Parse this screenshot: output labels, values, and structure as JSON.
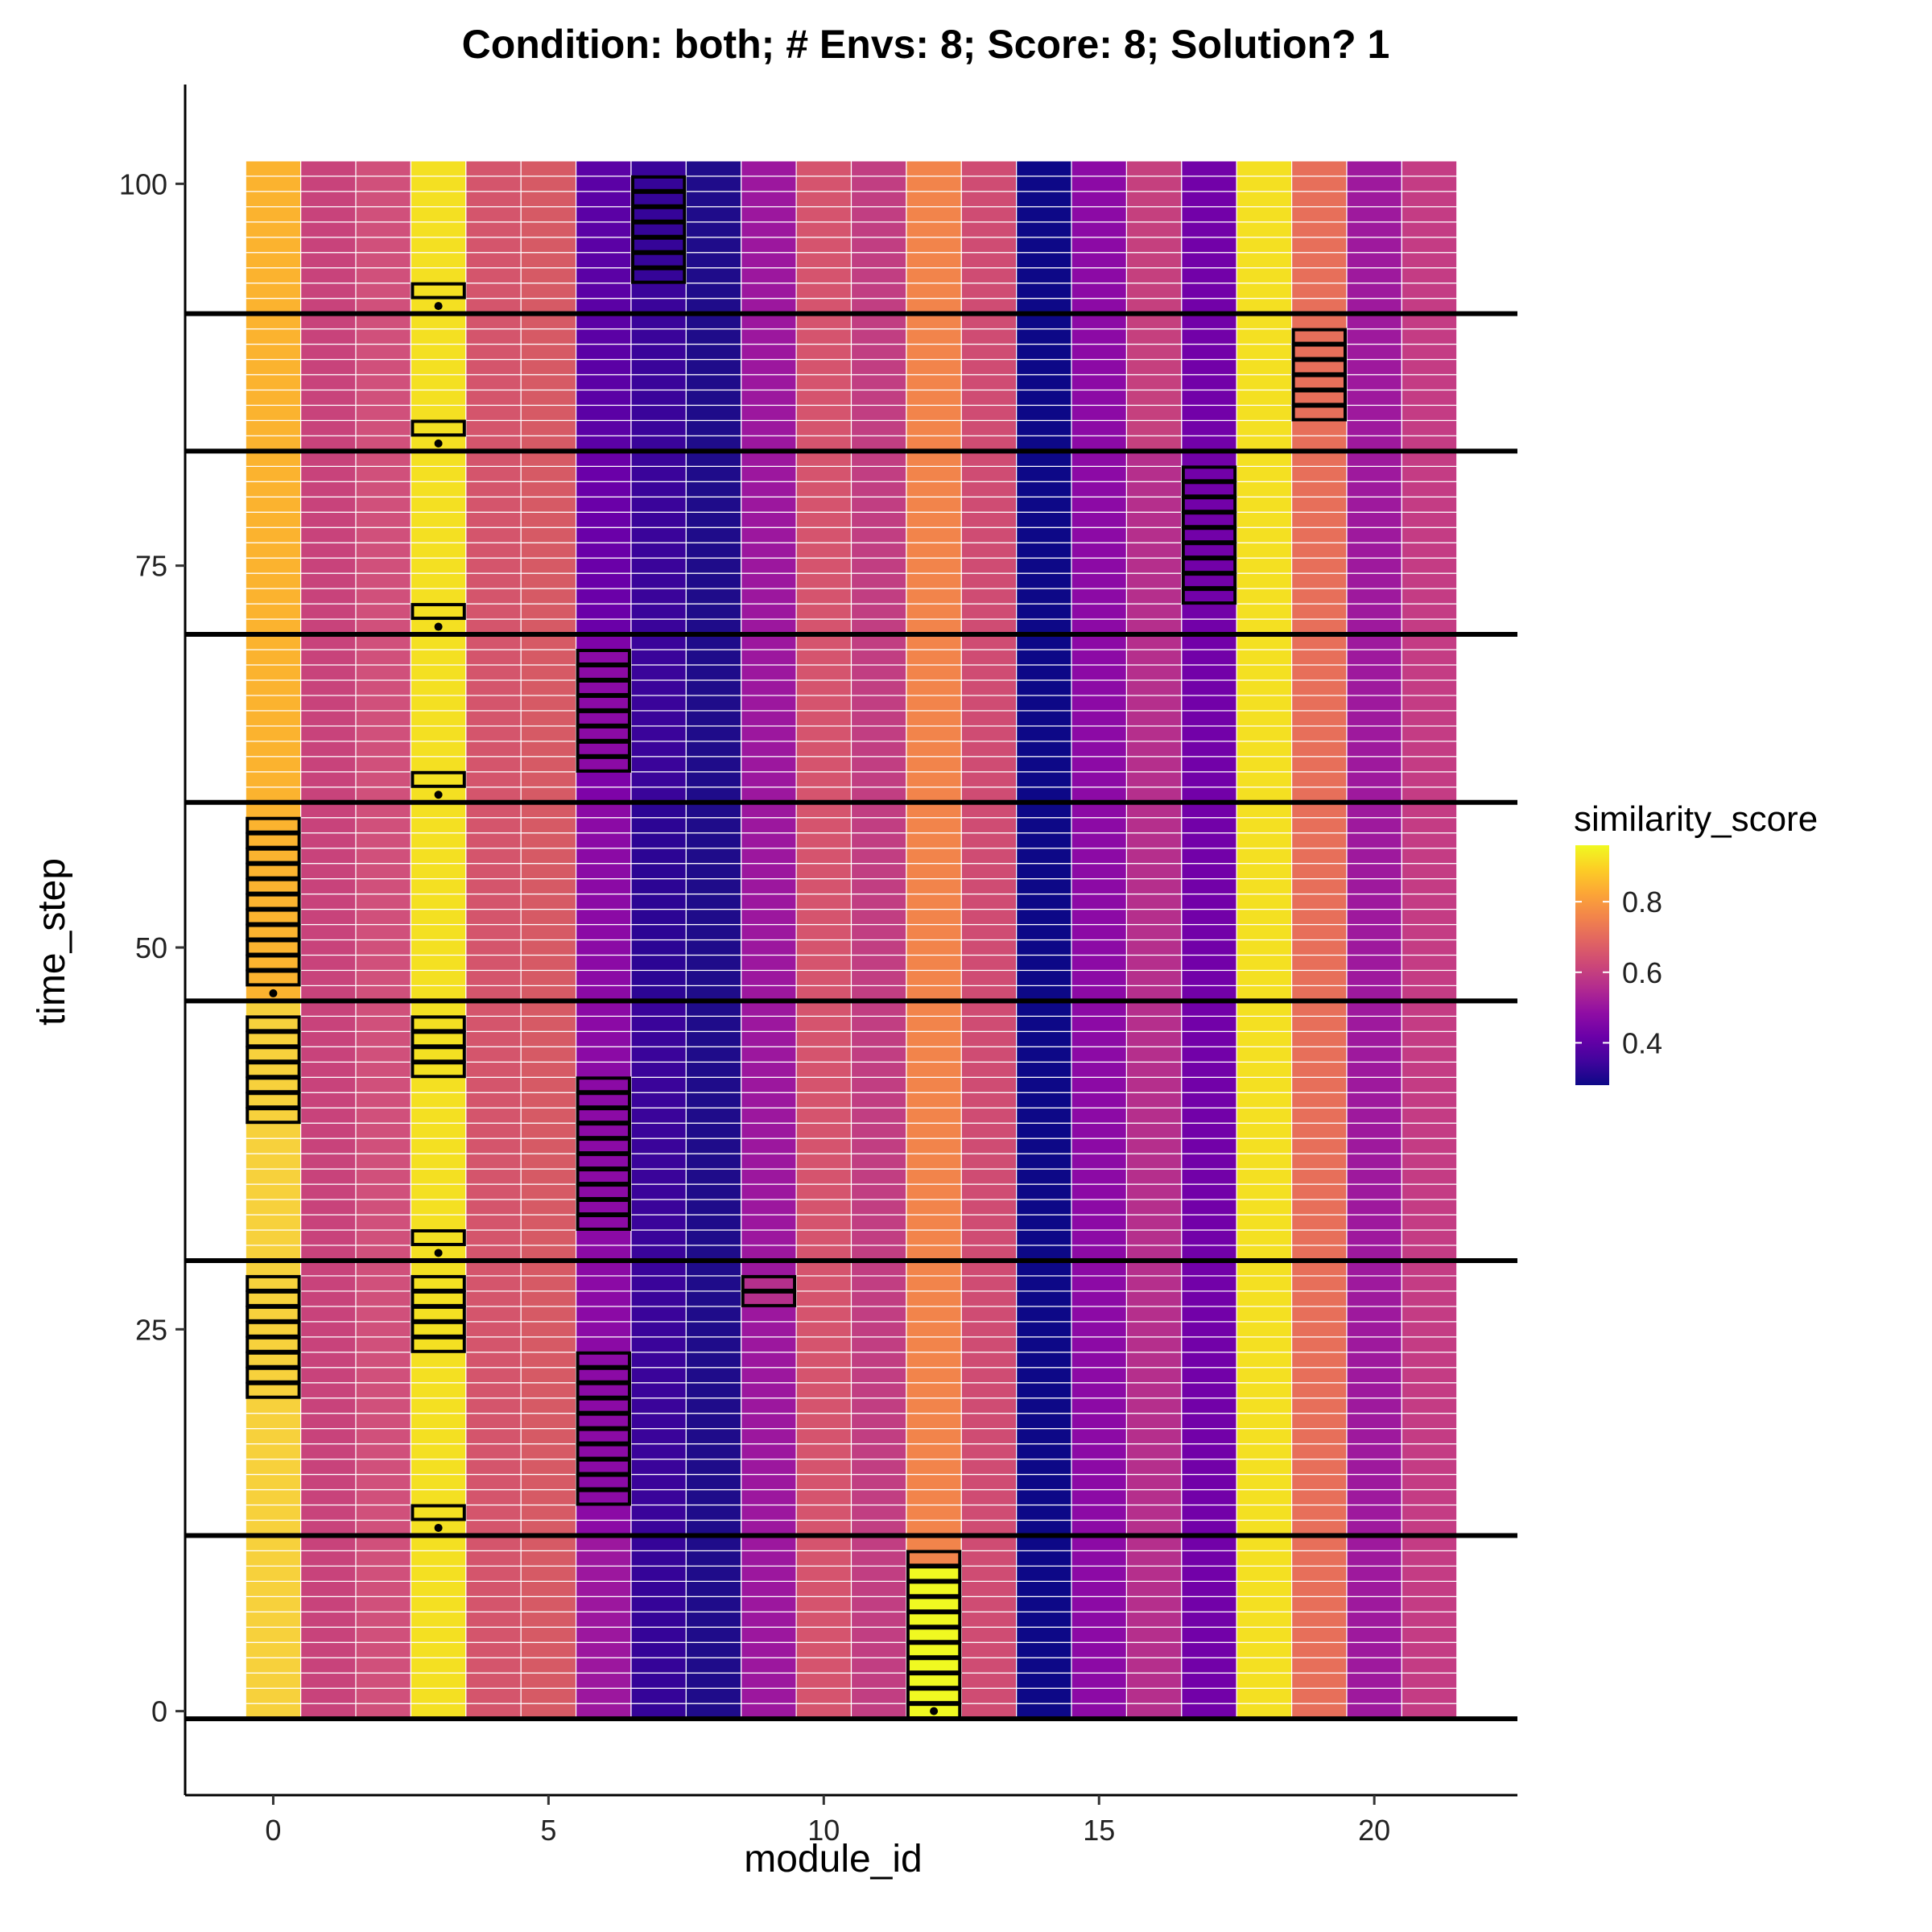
{
  "chart_data": {
    "type": "heatmap",
    "title": "Condition: both; # Envs: 8; Score: 8; Solution? 1",
    "xlabel": "module_id",
    "ylabel": "time_step",
    "xlim": [
      -1.6,
      22.6
    ],
    "ylim": [
      -5.5,
      106.5
    ],
    "x_ticks": [
      0,
      5,
      10,
      15,
      20
    ],
    "y_ticks": [
      0,
      25,
      50,
      75,
      100
    ],
    "modules": [
      0,
      1,
      2,
      3,
      4,
      5,
      6,
      7,
      8,
      9,
      10,
      11,
      12,
      13,
      14,
      15,
      16,
      17,
      18,
      19,
      20,
      21
    ],
    "time_steps": {
      "min": 0,
      "max": 101
    },
    "column_colors": [
      "#fbb32f",
      "#c8437b",
      "#d0507b",
      "#f4e022",
      "#d4556c",
      "#d65a65",
      "#6a00a8",
      "#3a049a",
      "#1f0c8a",
      "#9c179e",
      "#d5546e",
      "#c13e82",
      "#f2844b",
      "#cf4c73",
      "#0d0887",
      "#8c0aa5",
      "#c5407e",
      "#7201a8",
      "#f4e022",
      "#e76f5a",
      "#9e199d",
      "#c43c84"
    ],
    "column_colors_by_segment": [
      {
        "from": 0,
        "to": 11,
        "overrides": {
          "0": "#f7d13c",
          "6": "#9c179e",
          "7": "#350498",
          "16": "#b52f8c"
        }
      },
      {
        "from": 12,
        "to": 29,
        "overrides": {
          "0": "#f7d13c",
          "6": "#8b0aa5",
          "16": "#b52f8c"
        }
      },
      {
        "from": 30,
        "to": 46,
        "overrides": {
          "0": "#f7d13c",
          "6": "#8b0aa5",
          "16": "#b52f8c"
        }
      },
      {
        "from": 47,
        "to": 59,
        "overrides": {
          "0": "#fbb32f",
          "6": "#8b0aa5",
          "7": "#2c0594",
          "16": "#b52f8c"
        }
      },
      {
        "from": 60,
        "to": 70,
        "overrides": {
          "0": "#fbb32f",
          "6": "#7e03a8",
          "16": "#b52f8c"
        }
      },
      {
        "from": 71,
        "to": 82,
        "overrides": {
          "0": "#fbb32f",
          "6": "#6a00a8",
          "16": "#b52f8c"
        }
      },
      {
        "from": 83,
        "to": 91,
        "overrides": {
          "0": "#fbb32f",
          "6": "#5b01a5"
        }
      },
      {
        "from": 92,
        "to": 101,
        "overrides": {
          "0": "#fbb32f",
          "6": "#5b01a5"
        }
      }
    ],
    "highlight_boxes": [
      {
        "module": 12,
        "t_start": 0,
        "t_end": 10,
        "color": "#f0f921",
        "top_color": "#f2844b"
      },
      {
        "module": 3,
        "t_start": 13,
        "t_end": 13,
        "color": "#f4e022"
      },
      {
        "module": 6,
        "t_start": 14,
        "t_end": 23,
        "color": "#8b0aa5"
      },
      {
        "module": 0,
        "t_start": 21,
        "t_end": 28,
        "color": "#f7d13c"
      },
      {
        "module": 3,
        "t_start": 24,
        "t_end": 28,
        "color": "#f4e022"
      },
      {
        "module": 9,
        "t_start": 27,
        "t_end": 28,
        "color": "#b52f8c"
      },
      {
        "module": 3,
        "t_start": 31,
        "t_end": 31,
        "color": "#f4e022"
      },
      {
        "module": 6,
        "t_start": 32,
        "t_end": 41,
        "color": "#8b0aa5"
      },
      {
        "module": 0,
        "t_start": 39,
        "t_end": 45,
        "color": "#f7d13c"
      },
      {
        "module": 3,
        "t_start": 42,
        "t_end": 45,
        "color": "#f4e022"
      },
      {
        "module": 0,
        "t_start": 48,
        "t_end": 58,
        "color": "#fbb32f"
      },
      {
        "module": 3,
        "t_start": 61,
        "t_end": 61,
        "color": "#f4e022"
      },
      {
        "module": 6,
        "t_start": 62,
        "t_end": 69,
        "color": "#8b0aa5"
      },
      {
        "module": 3,
        "t_start": 72,
        "t_end": 72,
        "color": "#f4e022"
      },
      {
        "module": 17,
        "t_start": 73,
        "t_end": 81,
        "color": "#7201a8"
      },
      {
        "module": 3,
        "t_start": 84,
        "t_end": 84,
        "color": "#f4e022"
      },
      {
        "module": 19,
        "t_start": 85,
        "t_end": 90,
        "color": "#e76f5a"
      },
      {
        "module": 3,
        "t_start": 93,
        "t_end": 93,
        "color": "#f4e022"
      },
      {
        "module": 7,
        "t_start": 94,
        "t_end": 100,
        "color": "#350498"
      }
    ],
    "hlines": [
      -0.5,
      11.5,
      29.5,
      46.5,
      59.5,
      70.5,
      82.5,
      91.5
    ],
    "points": [
      {
        "x": 12,
        "y": 0
      },
      {
        "x": 3,
        "y": 12
      },
      {
        "x": 3,
        "y": 30
      },
      {
        "x": 0,
        "y": 47
      },
      {
        "x": 3,
        "y": 60
      },
      {
        "x": 3,
        "y": 71
      },
      {
        "x": 3,
        "y": 83
      },
      {
        "x": 3,
        "y": 92
      }
    ],
    "legend": {
      "title": "similarity_score",
      "position": "right",
      "ticks": [
        "0.8",
        "0.6",
        "0.4"
      ],
      "tick_values": [
        0.8,
        0.6,
        0.4
      ],
      "range": [
        0.28,
        0.96
      ],
      "colors": [
        "#0d0887",
        "#41049d",
        "#6a00a8",
        "#8f0da4",
        "#b12a90",
        "#cc4778",
        "#e16462",
        "#f2844b",
        "#fca636",
        "#fcce25",
        "#f0f921"
      ]
    }
  }
}
